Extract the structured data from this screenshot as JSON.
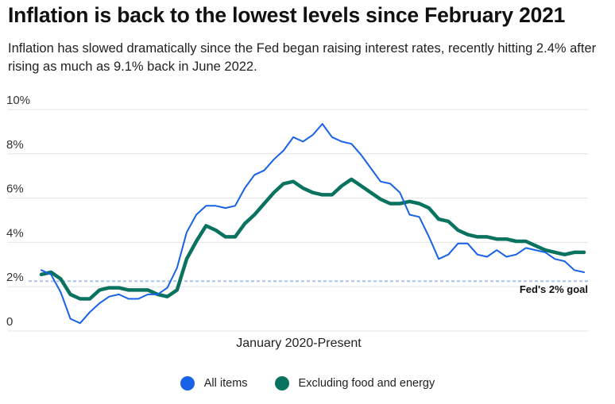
{
  "title": "Inflation is back to the lowest levels since February 2021",
  "subtitle": "Inflation has slowed dramatically since the Fed began raising interest rates, recently hitting 2.4% after rising as much as 9.1% back in June 2022.",
  "chart_data": {
    "type": "line",
    "xlabel": "January 2020-Present",
    "ylabel": "",
    "ylim": [
      0,
      10
    ],
    "yticks": [
      "10%",
      "8%",
      "6%",
      "4%",
      "2%",
      "0"
    ],
    "grid": true,
    "legend_position": "bottom-center",
    "reference_line": {
      "value": 2.0,
      "label": "Fed's 2% goal",
      "color": "#a9c3ef"
    },
    "x_start": "2020-01",
    "series": [
      {
        "name": "All items",
        "color": "#1762e6",
        "values": [
          2.5,
          2.3,
          1.5,
          0.3,
          0.1,
          0.6,
          1.0,
          1.3,
          1.4,
          1.2,
          1.2,
          1.4,
          1.4,
          1.7,
          2.6,
          4.2,
          5.0,
          5.4,
          5.4,
          5.3,
          5.4,
          6.2,
          6.8,
          7.0,
          7.5,
          7.9,
          8.5,
          8.3,
          8.6,
          9.1,
          8.5,
          8.3,
          8.2,
          7.7,
          7.1,
          6.5,
          6.4,
          6.0,
          5.0,
          4.9,
          4.0,
          3.0,
          3.2,
          3.7,
          3.7,
          3.2,
          3.1,
          3.4,
          3.1,
          3.2,
          3.5,
          3.4,
          3.3,
          3.0,
          2.9,
          2.5,
          2.4
        ]
      },
      {
        "name": "Excluding food and energy",
        "color": "#0a7360",
        "values": [
          2.3,
          2.4,
          2.1,
          1.4,
          1.2,
          1.2,
          1.6,
          1.7,
          1.7,
          1.6,
          1.6,
          1.6,
          1.4,
          1.3,
          1.6,
          3.0,
          3.8,
          4.5,
          4.3,
          4.0,
          4.0,
          4.6,
          5.0,
          5.5,
          6.0,
          6.4,
          6.5,
          6.2,
          6.0,
          5.9,
          5.9,
          6.3,
          6.6,
          6.3,
          6.0,
          5.7,
          5.5,
          5.5,
          5.6,
          5.5,
          5.3,
          4.8,
          4.7,
          4.3,
          4.1,
          4.0,
          4.0,
          3.9,
          3.9,
          3.8,
          3.8,
          3.6,
          3.4,
          3.3,
          3.2,
          3.3,
          3.3
        ]
      }
    ]
  }
}
